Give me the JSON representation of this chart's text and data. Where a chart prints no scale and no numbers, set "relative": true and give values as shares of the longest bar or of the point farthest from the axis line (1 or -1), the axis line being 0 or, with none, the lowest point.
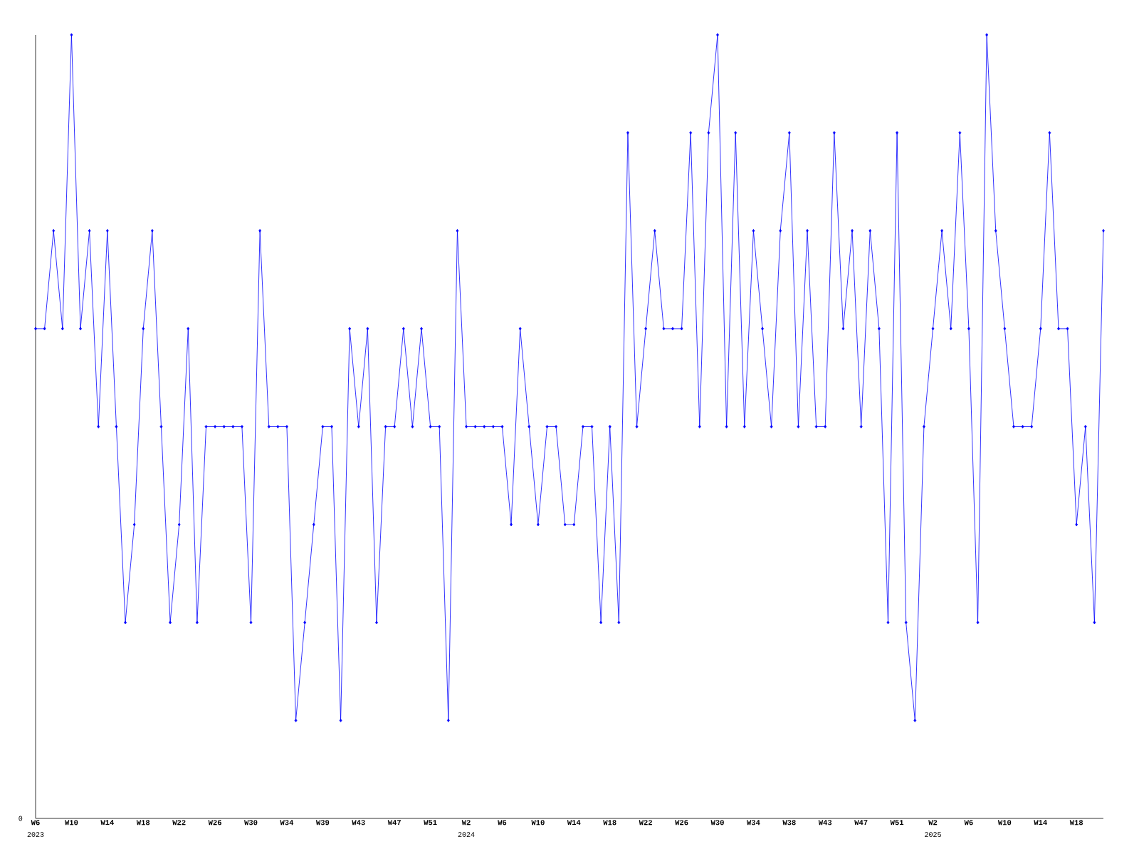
{
  "chart_data": {
    "type": "line",
    "relative": true,
    "color": "#0000ff",
    "marker": "diamond",
    "line_style": "solid",
    "categories": [
      "W6",
      null,
      null,
      null,
      "W10",
      null,
      null,
      null,
      "W14",
      null,
      null,
      null,
      "W18",
      null,
      null,
      null,
      "W22",
      null,
      null,
      null,
      "W26",
      null,
      null,
      null,
      "W30",
      null,
      null,
      null,
      "W34",
      null,
      null,
      null,
      "W39",
      null,
      null,
      null,
      "W43",
      null,
      null,
      null,
      "W47",
      null,
      null,
      null,
      "W51",
      null,
      null,
      null,
      "W2",
      null,
      null,
      null,
      "W6",
      null,
      null,
      null,
      "W10",
      null,
      null,
      null,
      "W14",
      null,
      null,
      null,
      "W18",
      null,
      null,
      null,
      "W22",
      null,
      null,
      null,
      "W26",
      null,
      null,
      null,
      "W30",
      null,
      null,
      null,
      "W34",
      null,
      null,
      null,
      "W38",
      null,
      null,
      null,
      "W43",
      null,
      null,
      null,
      "W47",
      null,
      null,
      null,
      "W51",
      null,
      null,
      null,
      "W2",
      null,
      null,
      null,
      "W6",
      null,
      null,
      null,
      "W10",
      null,
      null,
      null,
      "W14",
      null,
      null,
      null,
      "W18",
      null,
      null,
      null
    ],
    "values": [
      0.625,
      0.625,
      0.75,
      0.625,
      1,
      0.625,
      0.75,
      0.5,
      0.75,
      0.5,
      0.25,
      0.375,
      0.625,
      0.75,
      0.5,
      0.25,
      0.375,
      0.625,
      0.25,
      0.5,
      0.5,
      0.5,
      0.5,
      0.5,
      0.25,
      0.75,
      0.5,
      0.5,
      0.5,
      0.125,
      0.25,
      0.375,
      0.5,
      0.5,
      0.125,
      0.625,
      0.5,
      0.625,
      0.25,
      0.5,
      0.5,
      0.625,
      0.5,
      0.625,
      0.5,
      0.5,
      0.125,
      0.75,
      0.5,
      0.5,
      0.5,
      0.5,
      0.5,
      0.375,
      0.625,
      0.5,
      0.375,
      0.5,
      0.5,
      0.375,
      0.375,
      0.5,
      0.5,
      0.25,
      0.5,
      0.25,
      0.875,
      0.5,
      0.625,
      0.75,
      0.625,
      0.625,
      0.625,
      0.875,
      0.5,
      0.875,
      1,
      0.5,
      0.875,
      0.5,
      0.75,
      0.625,
      0.5,
      0.75,
      0.875,
      0.5,
      0.75,
      0.5,
      0.5,
      0.875,
      0.625,
      0.75,
      0.5,
      0.75,
      0.625,
      0.25,
      0.875,
      0.25,
      0.125,
      0.5,
      0.625,
      0.75,
      0.625,
      0.875,
      0.625,
      0.25,
      1,
      0.75,
      0.625,
      0.5,
      0.5,
      0.5,
      0.625,
      0.875,
      0.625,
      0.625,
      0.375,
      0.5,
      0.25,
      0.75
    ],
    "annotations": [
      "0",
      "2023",
      "2024",
      "2025"
    ]
  }
}
